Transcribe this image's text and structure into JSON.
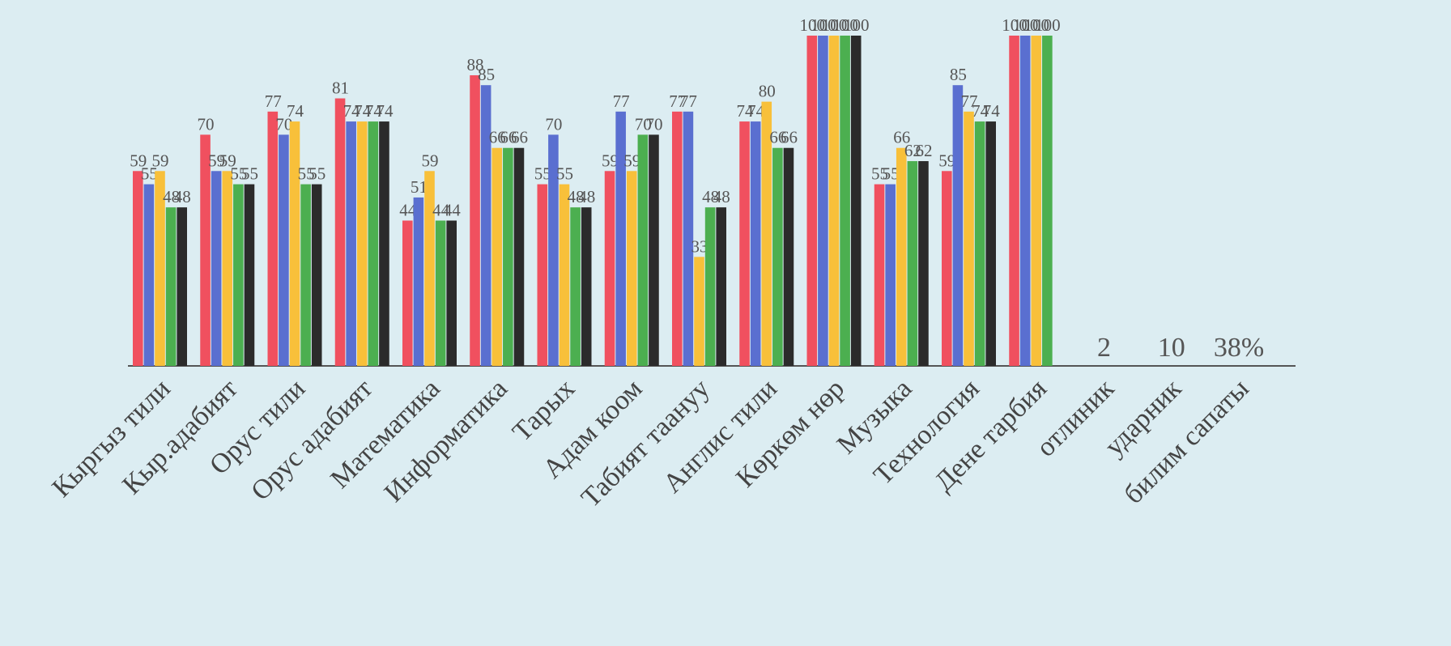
{
  "chart_data": {
    "type": "bar",
    "categories": [
      "Кыргыз тили",
      "Кыр.адабият",
      "Орус тили",
      "Орус адабият",
      "Математика",
      "Информатика",
      "Тарых",
      "Адам коом",
      "Табият таануу",
      "Англис тили",
      "Көркөм нөр",
      "Музыка",
      "Технология",
      "Дене тарбия",
      "отлиник",
      "ударник",
      "билим сапаты"
    ],
    "series": [
      {
        "color": "#f0505f",
        "values": [
          59,
          70,
          77,
          81,
          44,
          88,
          55,
          59,
          77,
          74,
          100,
          55,
          59,
          100,
          null,
          null,
          null
        ]
      },
      {
        "color": "#5a6fd0",
        "values": [
          55,
          59,
          70,
          74,
          51,
          85,
          70,
          77,
          77,
          74,
          100,
          55,
          85,
          100,
          null,
          null,
          null
        ]
      },
      {
        "color": "#f8c03a",
        "values": [
          59,
          59,
          74,
          74,
          59,
          66,
          55,
          59,
          33,
          80,
          100,
          66,
          77,
          100,
          null,
          null,
          null
        ]
      },
      {
        "color": "#4caf50",
        "values": [
          48,
          55,
          55,
          74,
          44,
          66,
          48,
          70,
          48,
          66,
          100,
          62,
          74,
          100,
          null,
          null,
          null
        ]
      },
      {
        "color": "#2b2b2b",
        "values": [
          48,
          55,
          55,
          74,
          44,
          66,
          48,
          70,
          48,
          66,
          100,
          62,
          74,
          null,
          null,
          null,
          null
        ]
      }
    ],
    "notes": [
      null,
      null,
      null,
      null,
      null,
      null,
      null,
      null,
      null,
      null,
      null,
      null,
      null,
      null,
      "2",
      "10",
      "38%"
    ],
    "ylim": [
      0,
      100
    ]
  }
}
